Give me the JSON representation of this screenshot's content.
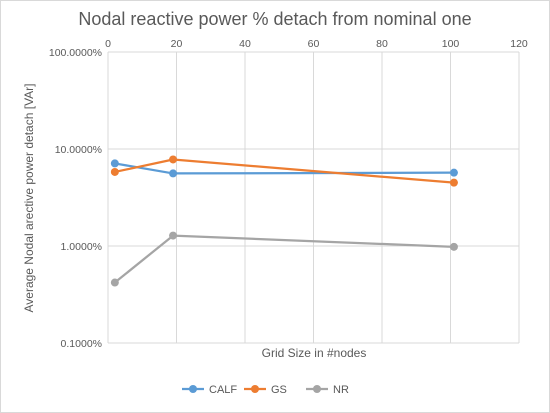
{
  "chart_data": {
    "type": "scatter",
    "title": "Nodal reactive power % detach from nominal one",
    "xlabel": "Grid Size in #nodes",
    "ylabel": "Average Nodal arective power detach [VAr]",
    "xlim": [
      0,
      120
    ],
    "xticks": [
      0,
      20,
      40,
      60,
      80,
      100,
      120
    ],
    "ylim": [
      0.1,
      100
    ],
    "yscale": "log",
    "yticks": [
      {
        "value": 100,
        "label": "100.0000%"
      },
      {
        "value": 10,
        "label": "10.0000%"
      },
      {
        "value": 1,
        "label": "1.0000%"
      },
      {
        "value": 0.1,
        "label": "0.1000%"
      }
    ],
    "grid": true,
    "legend": "bottom",
    "series": [
      {
        "name": "CALF",
        "color": "#5b9bd5",
        "x": [
          2,
          19,
          101
        ],
        "y": [
          7.1,
          5.6,
          5.7
        ]
      },
      {
        "name": "GS",
        "color": "#ed7d31",
        "x": [
          2,
          19,
          101
        ],
        "y": [
          5.8,
          7.8,
          4.5
        ]
      },
      {
        "name": "NR",
        "color": "#a5a5a5",
        "x": [
          2,
          19,
          101
        ],
        "y": [
          0.42,
          1.28,
          0.98
        ]
      }
    ]
  }
}
